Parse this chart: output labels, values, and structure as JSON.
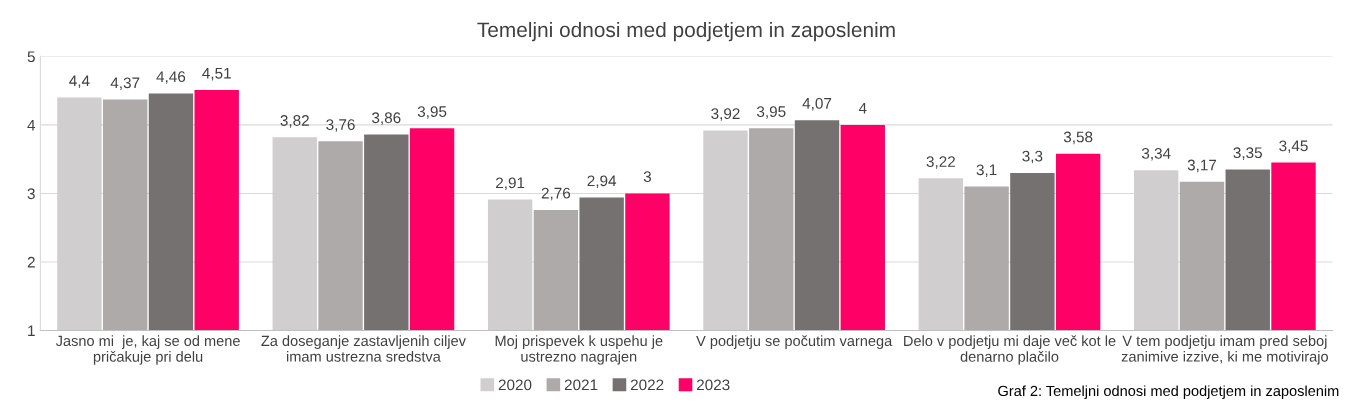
{
  "chart_data": {
    "type": "bar",
    "title": "Temeljni odnosi med podjetjem in zaposlenim",
    "categories": [
      "Jasno mi  je, kaj se od mene\npričakuje pri delu",
      "Za doseganje zastavljenih ciljev\nimam ustrezna sredstva",
      "Moj prispevek k uspehu je\nustrezno nagrajen",
      "V podjetju se počutim varnega",
      "Delo v podjetju mi daje več kot le\ndenarno plačilo",
      "V tem podjetju imam pred seboj\nzanimive izzive, ki me motivirajo"
    ],
    "series": [
      {
        "name": "2020",
        "color": "#d0cece",
        "values": [
          4.4,
          3.82,
          2.91,
          3.92,
          3.22,
          3.34
        ],
        "value_labels": [
          "4,4",
          "3,82",
          "2,91",
          "3,92",
          "3,22",
          "3,34"
        ]
      },
      {
        "name": "2021",
        "color": "#aeaaaa",
        "values": [
          4.37,
          3.76,
          2.76,
          3.95,
          3.1,
          3.17
        ],
        "value_labels": [
          "4,37",
          "3,76",
          "2,76",
          "3,95",
          "3,1",
          "3,17"
        ]
      },
      {
        "name": "2022",
        "color": "#767171",
        "values": [
          4.46,
          3.86,
          2.94,
          4.07,
          3.3,
          3.35
        ],
        "value_labels": [
          "4,46",
          "3,86",
          "2,94",
          "4,07",
          "3,3",
          "3,35"
        ]
      },
      {
        "name": "2023",
        "color": "#ff0066",
        "values": [
          4.51,
          3.95,
          3,
          4,
          3.58,
          3.45
        ],
        "value_labels": [
          "4,51",
          "3,95",
          "3",
          "4",
          "3,58",
          "3,45"
        ]
      }
    ],
    "ylim": [
      1,
      5
    ],
    "yticks": [
      1,
      2,
      3,
      4,
      5
    ],
    "grid": "y",
    "legend": "bottom",
    "annotations": [
      "Graf 2: Temeljni odnosi med podjetjem in zaposlenim"
    ]
  }
}
